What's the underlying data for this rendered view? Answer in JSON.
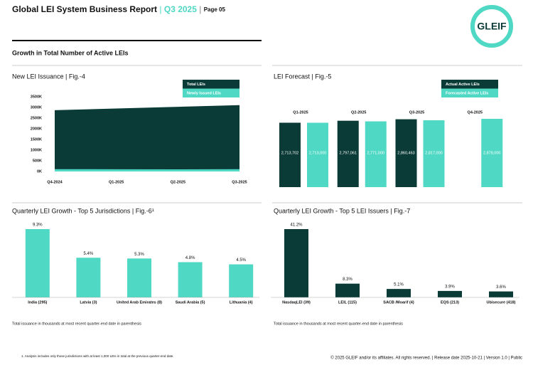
{
  "header": {
    "title": "Global LEI System Business Report",
    "quarter": "Q3 2025",
    "page": "Page 05"
  },
  "logo": "GLEIF",
  "section_title": "Growth in Total Number of Active LEIs",
  "chart_data": [
    {
      "type": "area",
      "title": "New LEI Issuance | Fig.-4",
      "categories": [
        "Q4-2024",
        "Q1-2025",
        "Q2-2025",
        "Q3-2025"
      ],
      "series": [
        {
          "name": "Total LEIs",
          "color": "#0b3b36",
          "values": [
            2870,
            2950,
            3030,
            3110
          ]
        },
        {
          "name": "Newly Issued LEIs",
          "color": "#4fd8c4",
          "values": [
            110,
            105,
            100,
            110
          ]
        }
      ],
      "ylim": [
        0,
        3500
      ],
      "yticks": [
        {
          "value": 0,
          "label": "0K"
        },
        {
          "value": 500,
          "label": "500K"
        },
        {
          "value": 1000,
          "label": "1000K"
        },
        {
          "value": 1500,
          "label": "1500K"
        },
        {
          "value": 2000,
          "label": "2000K"
        },
        {
          "value": 2500,
          "label": "2500K"
        },
        {
          "value": 3000,
          "label": "3000K"
        },
        {
          "value": 3500,
          "label": "3500K"
        }
      ],
      "legend": "top-right"
    },
    {
      "type": "bar",
      "title": "LEI Forecast | Fig.-5",
      "categories": [
        "Q1-2025",
        "Q2-2025",
        "Q3-2025",
        "Q4-2025"
      ],
      "series": [
        {
          "name": "Actual Active LEIs",
          "color": "#0b3b36",
          "values": [
            2713702,
            2797061,
            2860463,
            null
          ],
          "value_labels": [
            "2,713,702",
            "2,797,061",
            "2,860,463",
            null
          ]
        },
        {
          "name": "Forecasted Active LEIs",
          "color": "#4fd8c4",
          "values": [
            2713000,
            2771000,
            2817000,
            2878000
          ],
          "value_labels": [
            "2,713,000",
            "2,771,000",
            "2,817,000",
            "2,878,000"
          ]
        }
      ],
      "legend": "top-right"
    },
    {
      "type": "bar",
      "title": "Quarterly LEI Growth - Top 5 Jurisdictions | Fig.-6¹",
      "categories": [
        "India (295)",
        "Latvia (3)",
        "United Arab Emirates (8)",
        "Saudi Arabia (5)",
        "Lithuania (4)"
      ],
      "values": [
        9.3,
        5.4,
        5.3,
        4.8,
        4.5
      ],
      "value_labels": [
        "9.3%",
        "5.4%",
        "5.3%",
        "4.8%",
        "4.5%"
      ],
      "color": "#4fd8c4",
      "note": "Total issuance in thousands at most recent quarter-end date in parenthesis"
    },
    {
      "type": "bar",
      "title": "Quarterly LEI Growth - Top 5 LEI Issuers | Fig.-7",
      "categories": [
        "NasdaqLEI (39)",
        "LEIL (115)",
        "SACB /Moarif (4)",
        "EQS (213)",
        "Ubisecure (418)"
      ],
      "values": [
        41.2,
        8.3,
        5.1,
        3.9,
        3.6
      ],
      "value_labels": [
        "41.2%",
        "8.3%",
        "5.1%",
        "3.9%",
        "3.6%"
      ],
      "color": "#0b3b36",
      "note": "Total issuance in thousands at most recent quarter-end date in parenthesis"
    }
  ],
  "footnote": "1. Analysis includes only those jurisdictions with at least 1,000 LEIs in total at the previous quarter-end date.",
  "footer": "© 2025 GLEIF and/or its affiliates. All rights reserved. | Release date 2025-10-21 | Version 1.0 | Public"
}
